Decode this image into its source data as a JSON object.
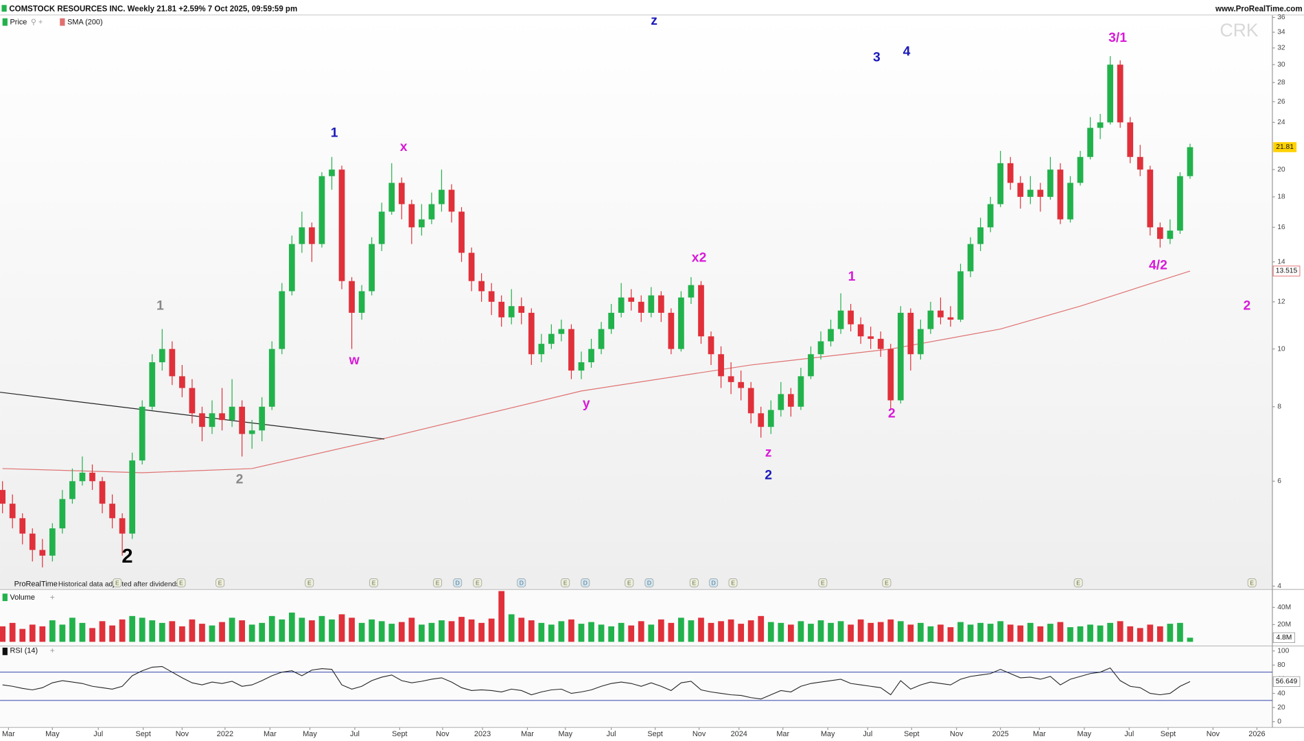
{
  "chart_data": {
    "type": "candlestick",
    "title": "COMSTOCK RESOURCES INC. Weekly 21.81 +2.59% 7 Oct 2025, 09:59:59 pm",
    "source": "www.ProRealTime.com",
    "symbol": "CRK",
    "brand": "ProRealTime",
    "note": "Historical data adjusted after dividends",
    "price_label": "Price",
    "sma_label": "SMA (200)",
    "volume_label": "Volume",
    "rsi_label": "RSI (14)",
    "log_y": true,
    "grid": false,
    "up_color": "#22b24c",
    "down_color": "#e0303a",
    "xlim": [
      -0.25,
      127.25
    ],
    "xticks": [
      {
        "value": 0.6,
        "label": "Mar"
      },
      {
        "value": 5,
        "label": "May"
      },
      {
        "value": 9.6,
        "label": "Jul"
      },
      {
        "value": 14.1,
        "label": "Sept"
      },
      {
        "value": 18,
        "label": "Nov"
      },
      {
        "value": 22.3,
        "label": "2022"
      },
      {
        "value": 26.8,
        "label": "Mar"
      },
      {
        "value": 30.8,
        "label": "May"
      },
      {
        "value": 35.3,
        "label": "Jul"
      },
      {
        "value": 39.8,
        "label": "Sept"
      },
      {
        "value": 44.1,
        "label": "Nov"
      },
      {
        "value": 48.1,
        "label": "2023"
      },
      {
        "value": 52.6,
        "label": "Mar"
      },
      {
        "value": 56.4,
        "label": "May"
      },
      {
        "value": 61,
        "label": "Jul"
      },
      {
        "value": 65.4,
        "label": "Sept"
      },
      {
        "value": 69.8,
        "label": "Nov"
      },
      {
        "value": 73.8,
        "label": "2024"
      },
      {
        "value": 78.2,
        "label": "Mar"
      },
      {
        "value": 82.7,
        "label": "May"
      },
      {
        "value": 86.7,
        "label": "Jul"
      },
      {
        "value": 91.1,
        "label": "Sept"
      },
      {
        "value": 95.6,
        "label": "Nov"
      },
      {
        "value": 100,
        "label": "2025"
      },
      {
        "value": 103.9,
        "label": "Mar"
      },
      {
        "value": 108.4,
        "label": "May"
      },
      {
        "value": 112.9,
        "label": "Jul"
      },
      {
        "value": 116.8,
        "label": "Sept"
      },
      {
        "value": 121.3,
        "label": "Nov"
      },
      {
        "value": 125.7,
        "label": "2026"
      }
    ],
    "ylim": [
      4,
      36
    ],
    "yticks": [
      4,
      6,
      8,
      10,
      12,
      14,
      16,
      18,
      20,
      24,
      26,
      28,
      30,
      32,
      34,
      36
    ],
    "price": {
      "open": [
        5.8,
        5.5,
        5.2,
        4.9,
        4.6,
        4.5,
        5.0,
        5.6,
        6.0,
        6.2,
        6.0,
        5.5,
        5.2,
        4.9,
        6.5,
        8.0,
        9.5,
        10.0,
        9.0,
        8.6,
        7.8,
        7.4,
        7.8,
        7.6,
        8.0,
        7.2,
        7.3,
        8.0,
        10,
        12.5,
        15,
        16,
        15,
        19.5,
        20,
        13,
        11.5,
        12.5,
        15,
        17,
        19,
        17.5,
        16,
        16.5,
        17.5,
        18.5,
        17,
        14.5,
        13,
        12.5,
        12,
        11.3,
        11.8,
        11.5,
        9.8,
        10.2,
        10.6,
        10.8,
        9.2,
        9.5,
        10,
        10.8,
        11.5,
        12.2,
        12,
        11.5,
        12.3,
        11.5,
        10,
        12.2,
        12.8,
        10.5,
        9.8,
        9.0,
        8.8,
        8.6,
        7.8,
        7.4,
        7.9,
        8.4,
        8.0,
        9.0,
        9.8,
        10.3,
        10.8,
        11.6,
        11.0,
        10.5,
        10.4,
        10.0,
        8.2,
        11.5,
        9.8,
        10.8,
        11.6,
        11.3,
        11.2,
        13.5,
        15,
        16,
        17.5,
        20.5,
        19,
        18,
        18.5,
        18,
        20,
        16.5,
        19,
        21,
        23.5,
        24,
        30,
        24,
        21,
        20,
        16,
        15.3,
        15.8,
        19.5
      ],
      "high": [
        6.0,
        5.7,
        5.3,
        5.0,
        4.8,
        5.1,
        5.8,
        6.3,
        6.6,
        6.4,
        6.1,
        5.7,
        5.3,
        6.7,
        8.2,
        9.8,
        10.8,
        10.3,
        9.4,
        8.9,
        8.0,
        8.2,
        8.6,
        8.9,
        8.2,
        7.6,
        8.3,
        10.3,
        12.9,
        15.5,
        17,
        16.3,
        19.8,
        21,
        20.3,
        13.2,
        12.8,
        15.4,
        17.6,
        20.5,
        19.4,
        17.8,
        17.5,
        18.3,
        20,
        18.9,
        17.3,
        14.8,
        13.4,
        12.9,
        12.3,
        12.6,
        12.2,
        11.7,
        10.6,
        11,
        11.2,
        11,
        9.9,
        10.4,
        11.1,
        11.9,
        12.9,
        12.6,
        12.3,
        12.7,
        12.5,
        11.7,
        12.5,
        13.2,
        13,
        10.7,
        10.1,
        9.5,
        9.2,
        8.8,
        8.0,
        8.2,
        8.8,
        8.6,
        9.3,
        10.1,
        10.7,
        11.2,
        12.4,
        11.9,
        11.3,
        10.9,
        10.7,
        10.2,
        11.8,
        11.7,
        11.2,
        12,
        12.2,
        11.8,
        13.9,
        15.4,
        16.6,
        18,
        21.5,
        21,
        19.5,
        19.5,
        19,
        21,
        20.5,
        19.5,
        21.5,
        24.5,
        24.8,
        31,
        30.5,
        24.5,
        22,
        20.3,
        16.3,
        16.5,
        19.8,
        22.1
      ],
      "low": [
        5.3,
        5.0,
        4.7,
        4.4,
        4.3,
        4.4,
        4.9,
        5.5,
        5.9,
        5.8,
        5.3,
        5.0,
        4.5,
        4.8,
        6.4,
        7.9,
        9.2,
        8.7,
        8.3,
        7.5,
        7.0,
        7.2,
        7.3,
        7.4,
        6.6,
        6.8,
        7.0,
        7.9,
        9.8,
        12.3,
        14.5,
        14,
        14.8,
        18.5,
        12.6,
        10,
        11.2,
        12.3,
        14.6,
        16.8,
        16.5,
        15,
        15.5,
        16.2,
        17,
        16.3,
        14,
        12.5,
        12,
        11.4,
        10.9,
        11,
        11,
        9.4,
        9.5,
        10,
        10.3,
        8.9,
        8.9,
        9.3,
        9.8,
        10.6,
        11.3,
        11.6,
        11.1,
        11.3,
        11.1,
        9.8,
        9.9,
        11.9,
        10.2,
        9.4,
        8.6,
        8.4,
        8.2,
        7.5,
        7.1,
        7.2,
        7.7,
        7.7,
        7.9,
        8.9,
        9.6,
        10.1,
        10.6,
        10.7,
        10.2,
        10.0,
        9.7,
        7.9,
        8.1,
        9.2,
        9.6,
        10.6,
        11.0,
        10.9,
        11.1,
        13.2,
        14.6,
        15.7,
        17.3,
        18.5,
        17.2,
        17.5,
        17,
        17.8,
        16.2,
        16.3,
        18.8,
        20.8,
        22.5,
        23.8,
        23.5,
        20.5,
        19.5,
        15.5,
        14.8,
        15,
        15.6,
        19.3
      ],
      "close": [
        5.5,
        5.2,
        4.9,
        4.6,
        4.5,
        5.0,
        5.6,
        6.0,
        6.2,
        6.0,
        5.5,
        5.2,
        4.9,
        6.5,
        8.0,
        9.5,
        10.0,
        9.0,
        8.6,
        7.8,
        7.4,
        7.8,
        7.6,
        8.0,
        7.2,
        7.3,
        8.0,
        10,
        12.5,
        15,
        16,
        15,
        19.5,
        20,
        13,
        11.5,
        12.5,
        15,
        17,
        19,
        17.5,
        16,
        16.5,
        17.5,
        18.5,
        17,
        14.5,
        13,
        12.5,
        12,
        11.3,
        11.8,
        11.5,
        9.8,
        10.2,
        10.6,
        10.8,
        9.2,
        9.5,
        10,
        10.8,
        11.5,
        12.2,
        12,
        11.5,
        12.3,
        11.5,
        10,
        12.2,
        12.8,
        10.5,
        9.8,
        9.0,
        8.8,
        8.6,
        7.8,
        7.4,
        7.9,
        8.4,
        8.0,
        9.0,
        9.8,
        10.3,
        10.8,
        11.6,
        11.0,
        10.5,
        10.4,
        10.0,
        8.2,
        11.5,
        9.8,
        10.8,
        11.6,
        11.3,
        11.2,
        13.5,
        15,
        16,
        17.5,
        20.5,
        19,
        18,
        18.5,
        18,
        20,
        16.5,
        19,
        21,
        23.5,
        24,
        30,
        24,
        21,
        20,
        16,
        15.3,
        15.8,
        19.5,
        21.81
      ]
    },
    "sma": {
      "color": "#e07070",
      "x": [
        0,
        14,
        25,
        38,
        58,
        75,
        89,
        100,
        108,
        119
      ],
      "values": [
        6.3,
        6.2,
        6.3,
        7.06,
        8.5,
        9.4,
        10.0,
        10.8,
        11.8,
        13.515
      ]
    },
    "trendline": {
      "color": "#222222",
      "x": [
        -0.25,
        38.25
      ],
      "values": [
        8.46,
        7.06
      ]
    },
    "annotations": [
      {
        "text": "2",
        "color": "#000000",
        "x": 12.5,
        "y": 4.47
      },
      {
        "text": "1",
        "color": "#888888",
        "x": 15.8,
        "y": 11.8
      },
      {
        "text": "2",
        "color": "#888888",
        "x": 23.75,
        "y": 6.03
      },
      {
        "text": "1",
        "color": "#1a1ab8",
        "x": 33.25,
        "y": 23.0
      },
      {
        "text": "w",
        "color": "#d81ad8",
        "x": 35.25,
        "y": 9.55
      },
      {
        "text": "x",
        "color": "#d81ad8",
        "x": 40.2,
        "y": 21.8
      },
      {
        "text": "y",
        "color": "#d81ad8",
        "x": 58.5,
        "y": 8.08
      },
      {
        "text": "z",
        "color": "#1a1ab8",
        "x": 65.3,
        "y": 35.5
      },
      {
        "text": "x2",
        "color": "#d81ad8",
        "x": 69.8,
        "y": 14.2
      },
      {
        "text": "z",
        "color": "#d81ad8",
        "x": 76.75,
        "y": 6.69
      },
      {
        "text": "2",
        "color": "#1a1ab8",
        "x": 76.75,
        "y": 6.13
      },
      {
        "text": "1",
        "color": "#d81ad8",
        "x": 85.1,
        "y": 13.2
      },
      {
        "text": "3",
        "color": "#1a1ab8",
        "x": 87.6,
        "y": 30.8
      },
      {
        "text": "2",
        "color": "#d81ad8",
        "x": 89.1,
        "y": 7.78
      },
      {
        "text": "4",
        "color": "#1a1ab8",
        "x": 90.6,
        "y": 31.5
      },
      {
        "text": "3/1",
        "color": "#d81ad8",
        "x": 111.75,
        "y": 33.2
      },
      {
        "text": "4/2",
        "color": "#d81ad8",
        "x": 115.8,
        "y": 13.8
      },
      {
        "text": "2",
        "color": "#d81ad8",
        "x": 124.7,
        "y": 11.8
      }
    ],
    "events": [
      {
        "x": 11.5,
        "label": "E"
      },
      {
        "x": 17.9,
        "label": "E"
      },
      {
        "x": 21.8,
        "label": "E"
      },
      {
        "x": 30.75,
        "label": "E"
      },
      {
        "x": 37.2,
        "label": "E"
      },
      {
        "x": 43.6,
        "label": "E"
      },
      {
        "x": 45.6,
        "label": "D"
      },
      {
        "x": 47.6,
        "label": "E"
      },
      {
        "x": 52,
        "label": "D"
      },
      {
        "x": 56.4,
        "label": "E"
      },
      {
        "x": 58.4,
        "label": "D"
      },
      {
        "x": 62.8,
        "label": "E"
      },
      {
        "x": 64.8,
        "label": "D"
      },
      {
        "x": 69.3,
        "label": "E"
      },
      {
        "x": 71.25,
        "label": "D"
      },
      {
        "x": 73.2,
        "label": "E"
      },
      {
        "x": 82.2,
        "label": "E"
      },
      {
        "x": 88.6,
        "label": "E"
      },
      {
        "x": 107.8,
        "label": "E"
      },
      {
        "x": 125.2,
        "label": "E"
      }
    ],
    "volume": {
      "values": [
        18000000.0,
        22000000.0,
        15000000.0,
        20000000.0,
        18000000.0,
        25000000.0,
        20000000.0,
        28000000.0,
        22000000.0,
        16000000.0,
        24000000.0,
        19000000.0,
        26000000.0,
        30000000.0,
        28000000.0,
        25000000.0,
        22000000.0,
        24000000.0,
        18000000.0,
        26000000.0,
        21000000.0,
        19000000.0,
        23000000.0,
        28000000.0,
        25000000.0,
        20000000.0,
        22000000.0,
        30000000.0,
        26000000.0,
        34000000.0,
        28000000.0,
        25000000.0,
        30000000.0,
        26000000.0,
        32000000.0,
        28000000.0,
        22000000.0,
        26000000.0,
        24000000.0,
        21000000.0,
        23000000.0,
        28000000.0,
        20000000.0,
        22000000.0,
        25000000.0,
        24000000.0,
        29000000.0,
        26000000.0,
        22000000.0,
        27000000.0,
        59000000.0,
        32000000.0,
        28000000.0,
        25000000.0,
        22000000.0,
        20000000.0,
        24000000.0,
        26000000.0,
        21000000.0,
        23000000.0,
        20000000.0,
        18000000.0,
        22000000.0,
        19000000.0,
        24000000.0,
        20000000.0,
        26000000.0,
        22000000.0,
        28000000.0,
        25000000.0,
        28000000.0,
        22000000.0,
        24000000.0,
        26000000.0,
        21000000.0,
        25000000.0,
        30000000.0,
        23000000.0,
        22000000.0,
        20000000.0,
        24000000.0,
        21000000.0,
        25000000.0,
        22000000.0,
        24000000.0,
        20000000.0,
        26000000.0,
        22000000.0,
        23000000.0,
        26000000.0,
        24000000.0,
        20000000.0,
        22000000.0,
        18000000.0,
        20000000.0,
        17000000.0,
        23000000.0,
        20000000.0,
        22000000.0,
        21000000.0,
        24000000.0,
        20000000.0,
        19000000.0,
        22000000.0,
        18000000.0,
        21000000.0,
        23000000.0,
        17000000.0,
        18000000.0,
        20000000.0,
        19000000.0,
        22000000.0,
        24000000.0,
        18000000.0,
        16000000.0,
        20000000.0,
        18000000.0,
        21000000.0,
        22000000.0,
        4800000.0
      ],
      "last_label": "4.8M",
      "ylim": [
        0,
        58000000.0
      ],
      "yticks": [
        {
          "value": 40000000.0,
          "label": "40M"
        },
        {
          "value": 20000000.0,
          "label": "20M"
        }
      ]
    },
    "rsi": {
      "color": "#222222",
      "level_color": "#3344aa",
      "levels": [
        70,
        30
      ],
      "values": [
        52,
        50,
        47,
        45,
        48,
        55,
        58,
        56,
        54,
        50,
        48,
        46,
        50,
        65,
        72,
        77,
        78,
        70,
        62,
        55,
        52,
        56,
        54,
        57,
        50,
        52,
        58,
        65,
        70,
        72,
        65,
        73,
        75,
        74,
        52,
        46,
        50,
        58,
        63,
        66,
        58,
        55,
        57,
        60,
        62,
        56,
        48,
        44,
        45,
        44,
        42,
        46,
        44,
        38,
        42,
        45,
        46,
        40,
        42,
        45,
        50,
        54,
        56,
        54,
        50,
        55,
        50,
        44,
        55,
        57,
        45,
        42,
        40,
        38,
        37,
        34,
        32,
        38,
        44,
        42,
        50,
        54,
        56,
        58,
        60,
        54,
        52,
        50,
        48,
        38,
        58,
        46,
        52,
        56,
        54,
        52,
        60,
        64,
        66,
        68,
        74,
        68,
        62,
        63,
        60,
        64,
        52,
        60,
        64,
        68,
        70,
        76,
        58,
        50,
        48,
        40,
        38,
        40,
        50,
        56.649
      ],
      "ylim": [
        0,
        100
      ],
      "yticks": [
        100,
        80,
        60,
        40,
        20,
        0
      ]
    }
  }
}
